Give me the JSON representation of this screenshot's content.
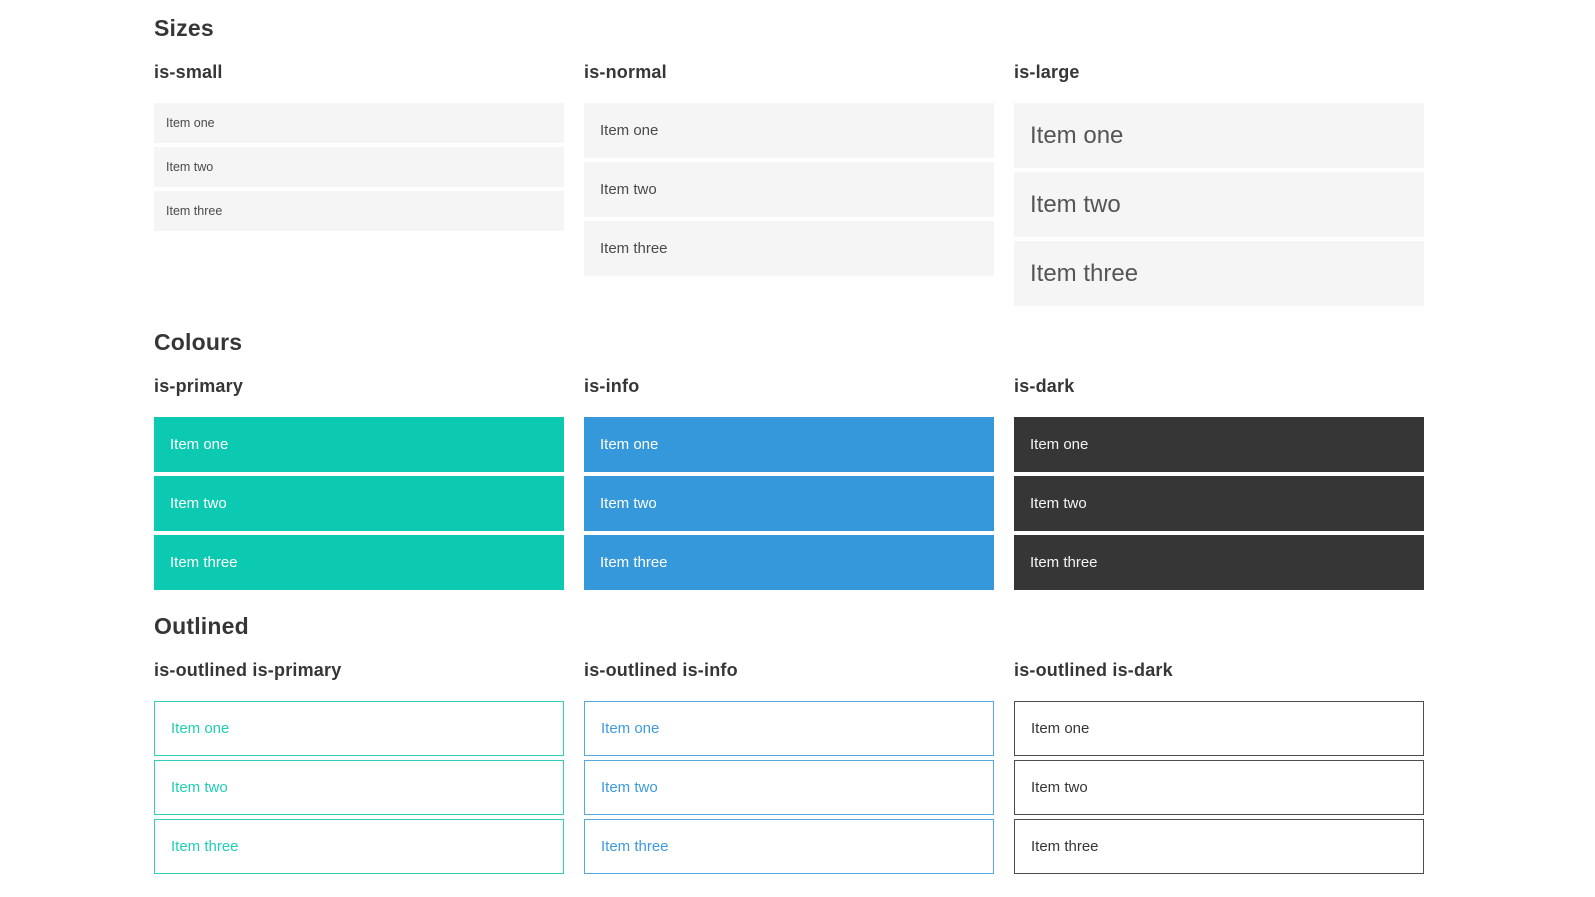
{
  "page": {
    "background": "#ffffff"
  },
  "colors": {
    "primary": "#0ccab2",
    "info": "#3598db",
    "dark": "#363636",
    "light_item_background": "#f5f5f5",
    "item_text": "#4a4a4a",
    "heading_text": "#363636",
    "filled_item_text": "#ffffff",
    "dark_item_text": "#f5f5f5"
  },
  "sections": [
    {
      "title": "Sizes",
      "groups": [
        {
          "label": "is-small",
          "items": [
            "Item one",
            "Item two",
            "Item three"
          ]
        },
        {
          "label": "is-normal",
          "items": [
            "Item one",
            "Item two",
            "Item three"
          ]
        },
        {
          "label": "is-large",
          "items": [
            "Item one",
            "Item two",
            "Item three"
          ]
        }
      ]
    },
    {
      "title": "Colours",
      "groups": [
        {
          "label": "is-primary",
          "items": [
            "Item one",
            "Item two",
            "Item three"
          ]
        },
        {
          "label": "is-info",
          "items": [
            "Item one",
            "Item two",
            "Item three"
          ]
        },
        {
          "label": "is-dark",
          "items": [
            "Item one",
            "Item two",
            "Item three"
          ]
        }
      ]
    },
    {
      "title": "Outlined",
      "groups": [
        {
          "label": "is-outlined is-primary",
          "items": [
            "Item one",
            "Item two",
            "Item three"
          ]
        },
        {
          "label": "is-outlined is-info",
          "items": [
            "Item one",
            "Item two",
            "Item three"
          ]
        },
        {
          "label": "is-outlined is-dark",
          "items": [
            "Item one",
            "Item two",
            "Item three"
          ]
        }
      ]
    }
  ]
}
